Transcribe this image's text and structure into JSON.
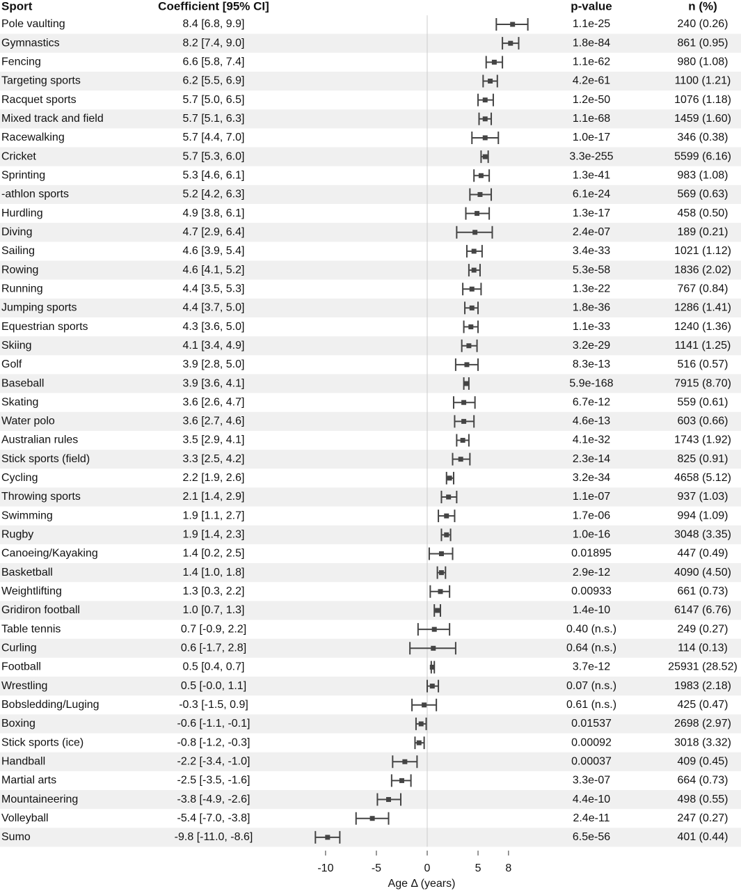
{
  "chart_data": {
    "type": "forest",
    "headers": [
      "Sport",
      "Coefficient [95% CI]",
      "p-value",
      "n (%)"
    ],
    "xlabel": "Age Δ (years)",
    "xlim": [
      -11.5,
      11.5
    ],
    "xticks": [
      -10,
      -5,
      0,
      5,
      8
    ],
    "color": "#444444",
    "stripe_color": "#f0f0f0",
    "categories": [
      "Pole vaulting",
      "Gymnastics",
      "Fencing",
      "Targeting sports",
      "Racquet sports",
      "Mixed track and field",
      "Racewalking",
      "Cricket",
      "Sprinting",
      "-athlon sports",
      "Hurdling",
      "Diving",
      "Sailing",
      "Rowing",
      "Running",
      "Jumping sports",
      "Equestrian sports",
      "Skiing",
      "Golf",
      "Baseball",
      "Skating",
      "Water polo",
      "Australian rules",
      "Stick sports (field)",
      "Cycling",
      "Throwing sports",
      "Swimming",
      "Rugby",
      "Canoeing/Kayaking",
      "Basketball",
      "Weightlifting",
      "Gridiron football",
      "Table tennis",
      "Curling",
      "Football",
      "Wrestling",
      "Bobsledding/Luging",
      "Boxing",
      "Stick sports (ice)",
      "Handball",
      "Martial arts",
      "Mountaineering",
      "Volleyball",
      "Sumo"
    ],
    "values": [
      8.4,
      8.2,
      6.6,
      6.2,
      5.7,
      5.7,
      5.7,
      5.7,
      5.3,
      5.2,
      4.9,
      4.7,
      4.6,
      4.6,
      4.4,
      4.4,
      4.3,
      4.1,
      3.9,
      3.9,
      3.6,
      3.6,
      3.5,
      3.3,
      2.2,
      2.1,
      1.9,
      1.9,
      1.4,
      1.4,
      1.3,
      1.0,
      0.7,
      0.6,
      0.5,
      0.5,
      -0.3,
      -0.6,
      -0.8,
      -2.2,
      -2.5,
      -3.8,
      -5.4,
      -9.8
    ],
    "lower": [
      6.8,
      7.4,
      5.8,
      5.5,
      5.0,
      5.1,
      4.4,
      5.3,
      4.6,
      4.2,
      3.8,
      2.9,
      3.9,
      4.1,
      3.5,
      3.7,
      3.6,
      3.4,
      2.8,
      3.6,
      2.6,
      2.7,
      2.9,
      2.5,
      1.9,
      1.4,
      1.1,
      1.4,
      0.2,
      1.0,
      0.3,
      0.7,
      -0.9,
      -1.7,
      0.4,
      0,
      -1.5,
      -1.1,
      -1.2,
      -3.4,
      -3.5,
      -4.9,
      -7.0,
      -11.0
    ],
    "upper": [
      9.9,
      9.0,
      7.4,
      6.9,
      6.5,
      6.3,
      7.0,
      6.0,
      6.1,
      6.3,
      6.1,
      6.4,
      5.4,
      5.2,
      5.3,
      5.0,
      5.0,
      4.9,
      5.0,
      4.1,
      4.7,
      4.6,
      4.1,
      4.2,
      2.6,
      2.9,
      2.7,
      2.3,
      2.5,
      1.8,
      2.2,
      1.3,
      2.2,
      2.8,
      0.7,
      1.1,
      0.9,
      -0.1,
      -0.3,
      -1.0,
      -1.6,
      -2.6,
      -3.8,
      -8.6
    ],
    "value_labels": [
      "8.4 [6.8, 9.9]",
      "8.2 [7.4, 9.0]",
      "6.6 [5.8, 7.4]",
      "6.2 [5.5, 6.9]",
      "5.7 [5.0, 6.5]",
      "5.7 [5.1, 6.3]",
      "5.7 [4.4, 7.0]",
      "5.7 [5.3, 6.0]",
      "5.3 [4.6, 6.1]",
      "5.2 [4.2, 6.3]",
      "4.9 [3.8, 6.1]",
      "4.7 [2.9, 6.4]",
      "4.6 [3.9, 5.4]",
      "4.6 [4.1, 5.2]",
      "4.4 [3.5, 5.3]",
      "4.4 [3.7, 5.0]",
      "4.3 [3.6, 5.0]",
      "4.1 [3.4, 4.9]",
      "3.9 [2.8, 5.0]",
      "3.9 [3.6, 4.1]",
      "3.6 [2.6, 4.7]",
      "3.6 [2.7, 4.6]",
      "3.5 [2.9, 4.1]",
      "3.3 [2.5, 4.2]",
      "2.2 [1.9, 2.6]",
      "2.1 [1.4, 2.9]",
      "1.9 [1.1, 2.7]",
      "1.9 [1.4, 2.3]",
      "1.4 [0.2, 2.5]",
      "1.4 [1.0, 1.8]",
      "1.3 [0.3, 2.2]",
      "1.0 [0.7, 1.3]",
      "0.7 [-0.9, 2.2]",
      "0.6 [-1.7, 2.8]",
      "0.5 [0.4, 0.7]",
      "0.5 [-0.0, 1.1]",
      "-0.3 [-1.5, 0.9]",
      "-0.6 [-1.1, -0.1]",
      "-0.8 [-1.2, -0.3]",
      "-2.2 [-3.4, -1.0]",
      "-2.5 [-3.5, -1.6]",
      "-3.8 [-4.9, -2.6]",
      "-5.4 [-7.0, -3.8]",
      "-9.8 [-11.0, -8.6]"
    ],
    "p_values": [
      "1.1e-25",
      "1.8e-84",
      "1.1e-62",
      "4.2e-61",
      "1.2e-50",
      "1.1e-68",
      "1.0e-17",
      "3.3e-255",
      "1.3e-41",
      "6.1e-24",
      "1.3e-17",
      "2.4e-07",
      "3.4e-33",
      "5.3e-58",
      "1.3e-22",
      "1.8e-36",
      "1.1e-33",
      "3.2e-29",
      "8.3e-13",
      "5.9e-168",
      "6.7e-12",
      "4.6e-13",
      "4.1e-32",
      "2.3e-14",
      "3.2e-34",
      "1.1e-07",
      "1.7e-06",
      "1.0e-16",
      "0.01895",
      "2.9e-12",
      "0.00933",
      "1.4e-10",
      "0.40 (n.s.)",
      "0.64 (n.s.)",
      "3.7e-12",
      "0.07 (n.s.)",
      "0.61 (n.s.)",
      "0.01537",
      "0.00092",
      "0.00037",
      "3.3e-07",
      "4.4e-10",
      "2.4e-11",
      "6.5e-56"
    ],
    "n_labels": [
      "240 (0.26)",
      "861 (0.95)",
      "980 (1.08)",
      "1100 (1.21)",
      "1076 (1.18)",
      "1459 (1.60)",
      "346 (0.38)",
      "5599 (6.16)",
      "983 (1.08)",
      "569 (0.63)",
      "458 (0.50)",
      "189 (0.21)",
      "1021 (1.12)",
      "1836 (2.02)",
      "767 (0.84)",
      "1286 (1.41)",
      "1240 (1.36)",
      "1141 (1.25)",
      "516 (0.57)",
      "7915 (8.70)",
      "559 (0.61)",
      "603 (0.66)",
      "1743 (1.92)",
      "825 (0.91)",
      "4658 (5.12)",
      "937 (1.03)",
      "994 (1.09)",
      "3048 (3.35)",
      "447 (0.49)",
      "4090 (4.50)",
      "661 (0.73)",
      "6147 (6.76)",
      "249 (0.27)",
      "114 (0.13)",
      "25931 (28.52)",
      "1983 (2.18)",
      "425 (0.47)",
      "2698 (2.97)",
      "3018 (3.32)",
      "409 (0.45)",
      "664 (0.73)",
      "498 (0.55)",
      "247 (0.27)",
      "401 (0.44)"
    ]
  }
}
